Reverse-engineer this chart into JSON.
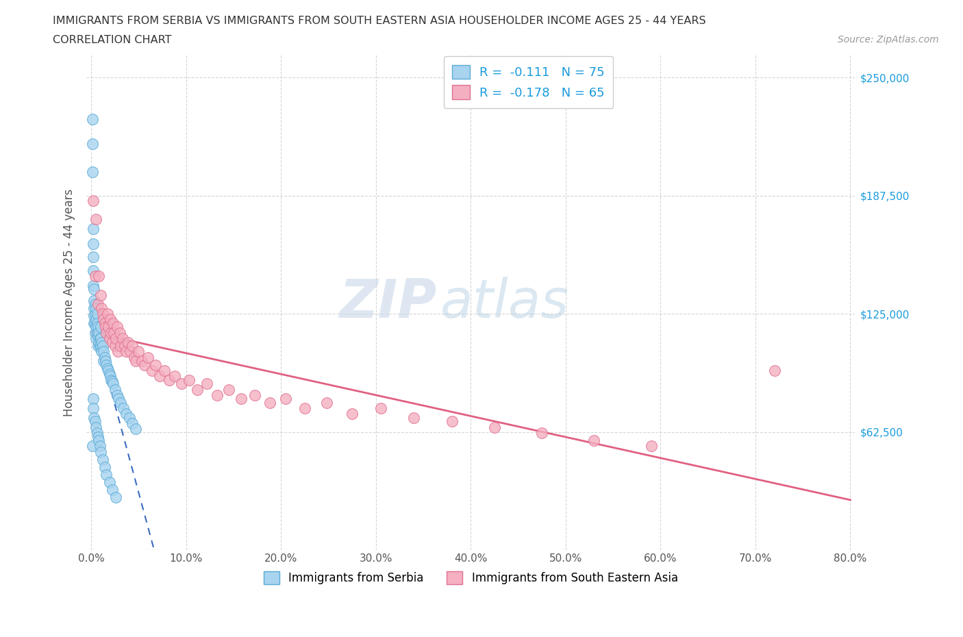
{
  "title_line1": "IMMIGRANTS FROM SERBIA VS IMMIGRANTS FROM SOUTH EASTERN ASIA HOUSEHOLDER INCOME AGES 25 - 44 YEARS",
  "title_line2": "CORRELATION CHART",
  "source_text": "Source: ZipAtlas.com",
  "ylabel": "Householder Income Ages 25 - 44 years",
  "xlim": [
    0.0,
    0.8
  ],
  "ylim": [
    0,
    250000
  ],
  "xticks": [
    0.0,
    0.1,
    0.2,
    0.3,
    0.4,
    0.5,
    0.6,
    0.7,
    0.8
  ],
  "xticklabels": [
    "0.0%",
    "10.0%",
    "20.0%",
    "30.0%",
    "40.0%",
    "50.0%",
    "60.0%",
    "70.0%",
    "80.0%"
  ],
  "yticks": [
    0,
    62500,
    125000,
    187500,
    250000
  ],
  "yticklabels": [
    "",
    "$62,500",
    "$125,000",
    "$187,500",
    "$250,000"
  ],
  "ytick_color": "#1a9bdc",
  "series1_color": "#a8d4f0",
  "series1_edge": "#5aaad4",
  "series2_color": "#f4afc0",
  "series2_edge": "#e07090",
  "trend1_color": "#3a6bbf",
  "trend2_color": "#e06080",
  "R1": -0.111,
  "N1": 75,
  "R2": -0.178,
  "N2": 65,
  "watermark_zip": "ZIP",
  "watermark_atlas": "atlas",
  "footer_label1": "Immigrants from Serbia",
  "footer_label2": "Immigrants from South Eastern Asia",
  "serbia_x": [
    0.001,
    0.001,
    0.001,
    0.002,
    0.002,
    0.002,
    0.002,
    0.002,
    0.003,
    0.003,
    0.003,
    0.003,
    0.003,
    0.004,
    0.004,
    0.004,
    0.004,
    0.005,
    0.005,
    0.005,
    0.005,
    0.006,
    0.006,
    0.006,
    0.007,
    0.007,
    0.007,
    0.008,
    0.008,
    0.009,
    0.009,
    0.01,
    0.01,
    0.01,
    0.011,
    0.011,
    0.012,
    0.013,
    0.013,
    0.014,
    0.015,
    0.016,
    0.017,
    0.018,
    0.019,
    0.02,
    0.021,
    0.022,
    0.023,
    0.025,
    0.027,
    0.029,
    0.031,
    0.034,
    0.037,
    0.04,
    0.043,
    0.047,
    0.001,
    0.002,
    0.002,
    0.003,
    0.004,
    0.005,
    0.006,
    0.007,
    0.008,
    0.009,
    0.01,
    0.012,
    0.014,
    0.016,
    0.019,
    0.022,
    0.026
  ],
  "serbia_y": [
    228000,
    215000,
    200000,
    170000,
    162000,
    155000,
    148000,
    140000,
    138000,
    132000,
    128000,
    124000,
    120000,
    130000,
    125000,
    120000,
    115000,
    128000,
    122000,
    118000,
    112000,
    125000,
    120000,
    115000,
    118000,
    113000,
    108000,
    115000,
    110000,
    112000,
    108000,
    118000,
    112000,
    108000,
    110000,
    105000,
    108000,
    105000,
    100000,
    102000,
    100000,
    98000,
    96000,
    95000,
    93000,
    92000,
    90000,
    89000,
    88000,
    85000,
    82000,
    80000,
    78000,
    75000,
    72000,
    70000,
    67000,
    64000,
    55000,
    80000,
    75000,
    70000,
    68000,
    65000,
    62000,
    60000,
    58000,
    55000,
    52000,
    48000,
    44000,
    40000,
    36000,
    32000,
    28000
  ],
  "sea_x": [
    0.002,
    0.004,
    0.005,
    0.007,
    0.008,
    0.01,
    0.011,
    0.012,
    0.013,
    0.014,
    0.015,
    0.016,
    0.017,
    0.018,
    0.019,
    0.02,
    0.021,
    0.022,
    0.023,
    0.024,
    0.025,
    0.026,
    0.027,
    0.028,
    0.03,
    0.031,
    0.033,
    0.035,
    0.037,
    0.039,
    0.041,
    0.043,
    0.045,
    0.047,
    0.05,
    0.053,
    0.056,
    0.06,
    0.064,
    0.068,
    0.072,
    0.077,
    0.082,
    0.088,
    0.095,
    0.103,
    0.112,
    0.122,
    0.133,
    0.145,
    0.158,
    0.172,
    0.188,
    0.205,
    0.225,
    0.248,
    0.275,
    0.305,
    0.34,
    0.38,
    0.425,
    0.475,
    0.53,
    0.59,
    0.72
  ],
  "sea_y": [
    185000,
    145000,
    175000,
    130000,
    145000,
    135000,
    128000,
    125000,
    122000,
    120000,
    118000,
    115000,
    125000,
    118000,
    112000,
    122000,
    115000,
    110000,
    120000,
    115000,
    108000,
    112000,
    118000,
    105000,
    115000,
    108000,
    112000,
    108000,
    105000,
    110000,
    105000,
    108000,
    102000,
    100000,
    105000,
    100000,
    98000,
    102000,
    95000,
    98000,
    92000,
    95000,
    90000,
    92000,
    88000,
    90000,
    85000,
    88000,
    82000,
    85000,
    80000,
    82000,
    78000,
    80000,
    75000,
    78000,
    72000,
    75000,
    70000,
    68000,
    65000,
    62000,
    58000,
    55000,
    95000
  ]
}
